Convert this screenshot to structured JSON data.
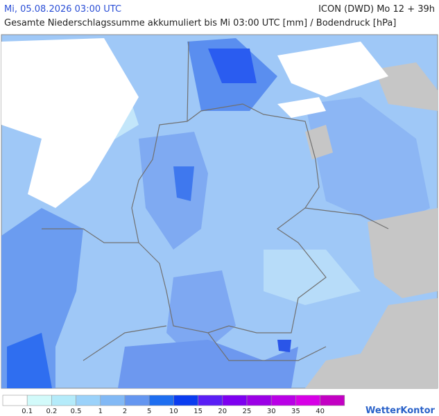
{
  "header": {
    "datetime": "Mi, 05.08.2026 03:00 UTC",
    "model": "ICON (DWD) Mo 12 + 39h",
    "subtitle": "Gesamte Niederschlagssumme akkumuliert bis Mi 03:00 UTC [mm] / Bodendruck [hPa]"
  },
  "legend": {
    "labels": [
      "0.1",
      "0.2",
      "0.5",
      "1",
      "2",
      "5",
      "10",
      "15",
      "20",
      "25",
      "30",
      "35",
      "40"
    ],
    "colors": [
      "#ffffff",
      "#d2fafa",
      "#b4ebfa",
      "#9bd2fa",
      "#82b9f5",
      "#6496f0",
      "#1e6ef0",
      "#0a3cf0",
      "#5a1ef5",
      "#7d00f0",
      "#9b00e6",
      "#b900e6",
      "#d700e6",
      "#c300c3"
    ]
  },
  "logo": "WetterKontor"
}
